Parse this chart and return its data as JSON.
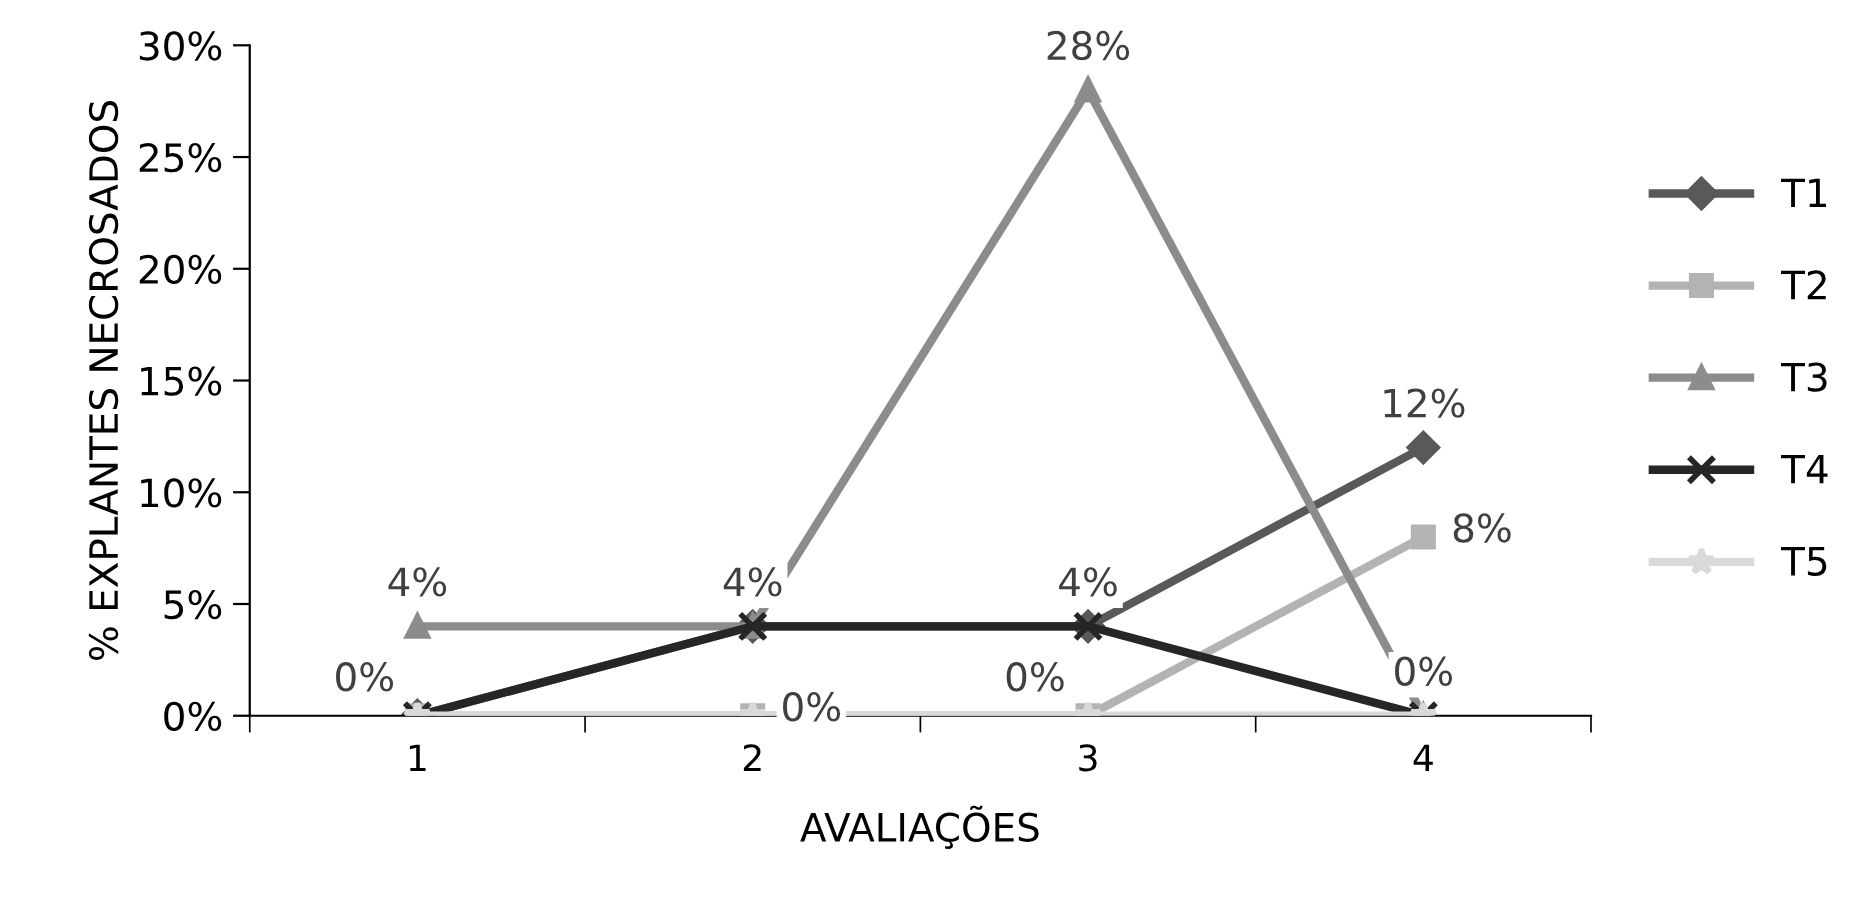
{
  "chart_data": {
    "type": "line",
    "xlabel": "AVALIAÇÕES",
    "ylabel": "% EXPLANTES NECROSADOS",
    "categories": [
      "1",
      "2",
      "3",
      "4"
    ],
    "series": [
      {
        "name": "T1",
        "color": "#595959",
        "marker": "diamond",
        "values": [
          0,
          4,
          4,
          12
        ],
        "value_labels": [
          null,
          null,
          "4%",
          "12%"
        ]
      },
      {
        "name": "T2",
        "color": "#b3b3b3",
        "marker": "square",
        "values": [
          0,
          0,
          0,
          8
        ],
        "value_labels": [
          null,
          "0%",
          null,
          "8%"
        ]
      },
      {
        "name": "T3",
        "color": "#8c8c8c",
        "marker": "triangle",
        "values": [
          4,
          4,
          28,
          0
        ],
        "value_labels": [
          "4%",
          "4%",
          "28%",
          "0%"
        ]
      },
      {
        "name": "T4",
        "color": "#262626",
        "marker": "cross",
        "values": [
          0,
          4,
          4,
          0
        ]
      },
      {
        "name": "T5",
        "color": "#d9d9d9",
        "marker": "star",
        "values": [
          0,
          0,
          0,
          0
        ],
        "value_labels": [
          "0%",
          null,
          "0%",
          null
        ]
      }
    ],
    "ylim": [
      0,
      30
    ],
    "yticks": [
      {
        "value": 0,
        "label": "0%"
      },
      {
        "value": 5,
        "label": "5%"
      },
      {
        "value": 10,
        "label": "10%"
      },
      {
        "value": 15,
        "label": "15%"
      },
      {
        "value": 20,
        "label": "20%"
      },
      {
        "value": 25,
        "label": "25%"
      },
      {
        "value": 30,
        "label": "30%"
      }
    ],
    "grid": false,
    "legend": "right"
  }
}
